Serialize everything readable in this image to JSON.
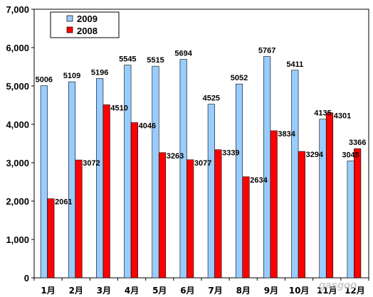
{
  "chart_data": {
    "type": "bar",
    "categories": [
      "1月",
      "2月",
      "3月",
      "4月",
      "5月",
      "6月",
      "7月",
      "8月",
      "9月",
      "10月",
      "11月",
      "12月"
    ],
    "series": [
      {
        "name": "2009",
        "values": [
          5006,
          5109,
          5196,
          5545,
          5515,
          5694,
          4525,
          5052,
          5767,
          5411,
          4135,
          3045
        ],
        "color": "#99ccff"
      },
      {
        "name": "2008",
        "values": [
          2061,
          3072,
          4510,
          4046,
          3263,
          3077,
          3339,
          2634,
          3834,
          3294,
          4301,
          3366
        ],
        "color": "#ff0000"
      }
    ],
    "y_ticks": [
      "0",
      "1,000",
      "2,000",
      "3,000",
      "4,000",
      "5,000",
      "6,000",
      "7,000"
    ],
    "ylim": [
      0,
      7000
    ],
    "grid": false,
    "legend_position": "top-left"
  },
  "watermark": "gasgoo"
}
